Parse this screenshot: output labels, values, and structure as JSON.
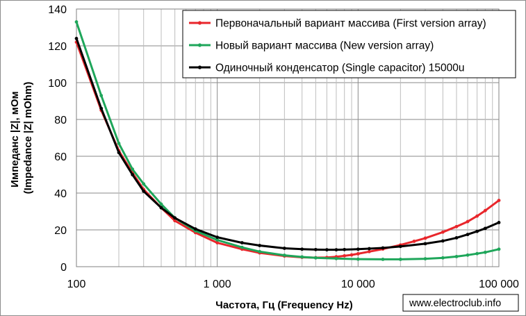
{
  "chart_data": {
    "type": "line",
    "x_scale": "log",
    "xlabel": "Частота, Гц (Frequency Hz)",
    "ylabel_lines": [
      "Импеданс |Z|, мОм",
      "(Impedance |Z| mOhm)"
    ],
    "xlim": [
      100,
      100000
    ],
    "ylim": [
      0,
      140
    ],
    "x_ticks": [
      100,
      1000,
      10000,
      100000
    ],
    "x_tick_labels": [
      "100",
      "1 000",
      "10 000",
      "100 000"
    ],
    "y_ticks": [
      0,
      20,
      40,
      60,
      80,
      100,
      120,
      140
    ],
    "y_tick_labels": [
      "0",
      "20",
      "40",
      "60",
      "80",
      "100",
      "120",
      "140"
    ],
    "grid": true,
    "legend_position": "top-right",
    "series": [
      {
        "name": "Первоначальный вариант массива (First version array)",
        "color": "#e8262b",
        "x": [
          100,
          150,
          200,
          250,
          300,
          400,
          500,
          700,
          1000,
          1500,
          2000,
          3000,
          4000,
          5000,
          6000,
          7000,
          8000,
          9000,
          10000,
          12000,
          15000,
          20000,
          25000,
          30000,
          40000,
          50000,
          60000,
          70000,
          80000,
          100000
        ],
        "values": [
          122,
          85,
          63,
          51,
          42,
          32,
          25,
          18.5,
          13,
          9.5,
          7.5,
          5.8,
          5.1,
          4.9,
          5.0,
          5.4,
          5.9,
          6.4,
          7.0,
          8.2,
          9.6,
          11.8,
          13.8,
          15.5,
          18.8,
          21.8,
          24.5,
          27.5,
          30.5,
          36
        ]
      },
      {
        "name": "Новый вариант массива (New version array)",
        "color": "#1ea65a",
        "x": [
          100,
          150,
          200,
          250,
          300,
          400,
          500,
          700,
          1000,
          1500,
          2000,
          3000,
          4000,
          5000,
          7000,
          10000,
          15000,
          20000,
          30000,
          40000,
          50000,
          60000,
          70000,
          80000,
          100000
        ],
        "values": [
          133,
          93,
          67,
          53,
          45,
          34,
          26.5,
          19.5,
          14.5,
          10.5,
          8.2,
          6.2,
          5.3,
          4.8,
          4.4,
          4.1,
          4.0,
          4.0,
          4.3,
          4.8,
          5.5,
          6.3,
          7.1,
          7.8,
          9.5
        ]
      },
      {
        "name": "Одиночный конденсатор (Single capacitor) 15000u",
        "color": "#000000",
        "x": [
          100,
          150,
          200,
          250,
          300,
          400,
          500,
          700,
          1000,
          1500,
          2000,
          3000,
          4000,
          5000,
          6000,
          7000,
          8000,
          10000,
          12000,
          15000,
          20000,
          30000,
          40000,
          50000,
          60000,
          70000,
          80000,
          100000
        ],
        "values": [
          124,
          86,
          62,
          50,
          41,
          32,
          26.5,
          20.5,
          16,
          13,
          11.5,
          10,
          9.5,
          9.3,
          9.2,
          9.2,
          9.3,
          9.5,
          9.8,
          10.2,
          11,
          12.5,
          14,
          15.7,
          17.5,
          19.2,
          20.8,
          24
        ]
      }
    ]
  },
  "watermark": "www.electroclub.info"
}
